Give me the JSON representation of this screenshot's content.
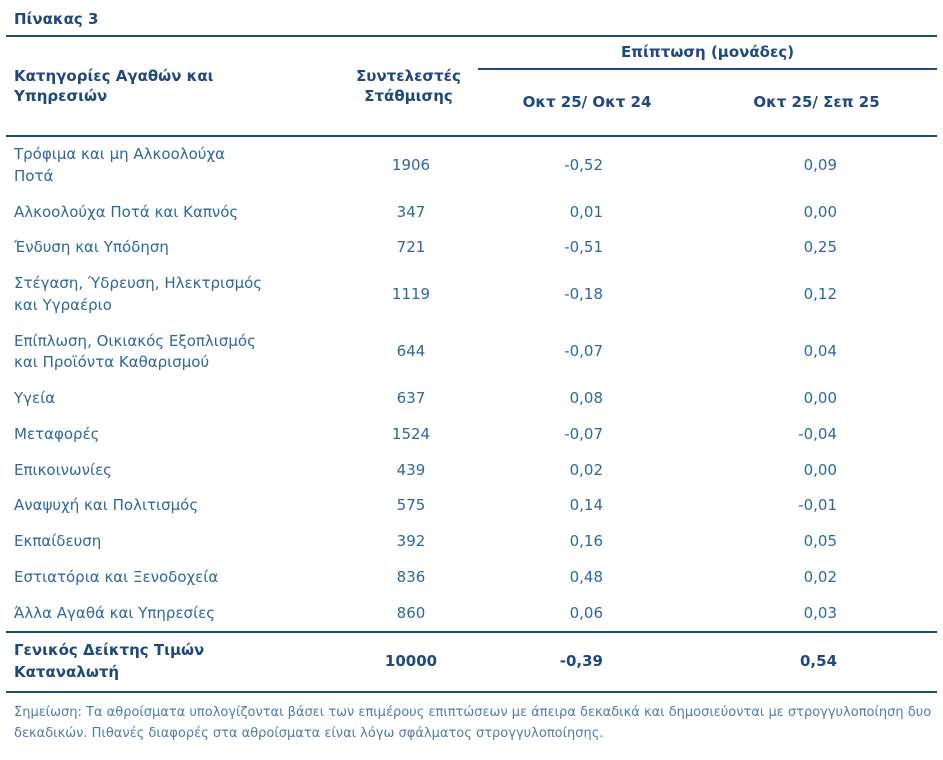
{
  "title": "Πίνακας 3",
  "table": {
    "headers": {
      "categories": "Κατηγορίες Αγαθών και\nΥπηρεσιών",
      "weights": "Συντελεστές\nΣτάθμισης",
      "impact": "Επίπτωση (μονάδες)",
      "yoy": "Οκτ 25/ Οκτ 24",
      "mom": "Οκτ 25/ Σεπ 25"
    },
    "rows": [
      {
        "category": "Τρόφιμα και μη Αλκοολούχα\nΠοτά",
        "weight": "1906",
        "yoy": "-0,52",
        "mom": "0,09"
      },
      {
        "category": "Αλκοολούχα Ποτά και Καπνός",
        "weight": "347",
        "yoy": "0,01",
        "mom": "0,00"
      },
      {
        "category": "Ένδυση και Υπόδηση",
        "weight": "721",
        "yoy": "-0,51",
        "mom": "0,25"
      },
      {
        "category": "Στέγαση, Ύδρευση, Ηλεκτρισμός\nκαι Υγραέριο",
        "weight": "1119",
        "yoy": "-0,18",
        "mom": "0,12"
      },
      {
        "category": "Επίπλωση, Οικιακός Εξοπλισμός\nκαι Προϊόντα Καθαρισμού",
        "weight": "644",
        "yoy": "-0,07",
        "mom": "0,04"
      },
      {
        "category": "Υγεία",
        "weight": "637",
        "yoy": "0,08",
        "mom": "0,00"
      },
      {
        "category": "Μεταφορές",
        "weight": "1524",
        "yoy": "-0,07",
        "mom": "-0,04"
      },
      {
        "category": "Επικοινωνίες",
        "weight": "439",
        "yoy": "0,02",
        "mom": "0,00"
      },
      {
        "category": "Αναψυχή και Πολιτισμός",
        "weight": "575",
        "yoy": "0,14",
        "mom": "-0,01"
      },
      {
        "category": "Εκπαίδευση",
        "weight": "392",
        "yoy": "0,16",
        "mom": "0,05"
      },
      {
        "category": "Εστιατόρια και Ξενοδοχεία",
        "weight": "836",
        "yoy": "0,48",
        "mom": "0,02"
      },
      {
        "category": "Άλλα Αγαθά και Υπηρεσίες",
        "weight": "860",
        "yoy": "0,06",
        "mom": "0,03"
      }
    ],
    "total": {
      "category": "Γενικός Δείκτης Τιμών\nΚαταναλωτή",
      "weight": "10000",
      "yoy": "-0,39",
      "mom": "0,54"
    }
  },
  "note": "Σημείωση: Τα αθροίσματα υπολογίζονται βάσει των επιμέρους επιπτώσεων με άπειρα δεκαδικά και δημοσιεύονται με στρογγυλοποίηση δυο δεκαδικών. Πιθανές διαφορές στα αθροίσματα είναι λόγω σφάλματος στρογγυλοποίησης.",
  "colors": {
    "header_text": "#1F497D",
    "body_text": "#2E679F",
    "note_text": "#4E7CAD",
    "rule": "#1F497D",
    "background": "#FFFFFF"
  },
  "chart_data": {
    "type": "table",
    "title": "Πίνακας 3",
    "columns": [
      "Κατηγορίες Αγαθών και Υπηρεσιών",
      "Συντελεστές Στάθμισης",
      "Επίπτωση (μονάδες) Οκτ 25/ Οκτ 24",
      "Επίπτωση (μονάδες) Οκτ 25/ Σεπ 25"
    ],
    "rows": [
      [
        "Τρόφιμα και μη Αλκοολούχα Ποτά",
        1906,
        -0.52,
        0.09
      ],
      [
        "Αλκοολούχα Ποτά και Καπνός",
        347,
        0.01,
        0.0
      ],
      [
        "Ένδυση και Υπόδηση",
        721,
        -0.51,
        0.25
      ],
      [
        "Στέγαση, Ύδρευση, Ηλεκτρισμός και Υγραέριο",
        1119,
        -0.18,
        0.12
      ],
      [
        "Επίπλωση, Οικιακός Εξοπλισμός και Προϊόντα Καθαρισμού",
        644,
        -0.07,
        0.04
      ],
      [
        "Υγεία",
        637,
        0.08,
        0.0
      ],
      [
        "Μεταφορές",
        1524,
        -0.07,
        -0.04
      ],
      [
        "Επικοινωνίες",
        439,
        0.02,
        0.0
      ],
      [
        "Αναψυχή και Πολιτισμός",
        575,
        0.14,
        -0.01
      ],
      [
        "Εκπαίδευση",
        392,
        0.16,
        0.05
      ],
      [
        "Εστιατόρια και Ξενοδοχεία",
        836,
        0.48,
        0.02
      ],
      [
        "Άλλα Αγαθά και Υπηρεσίες",
        860,
        0.06,
        0.03
      ],
      [
        "Γενικός Δείκτης Τιμών Καταναλωτή",
        10000,
        -0.39,
        0.54
      ]
    ]
  }
}
